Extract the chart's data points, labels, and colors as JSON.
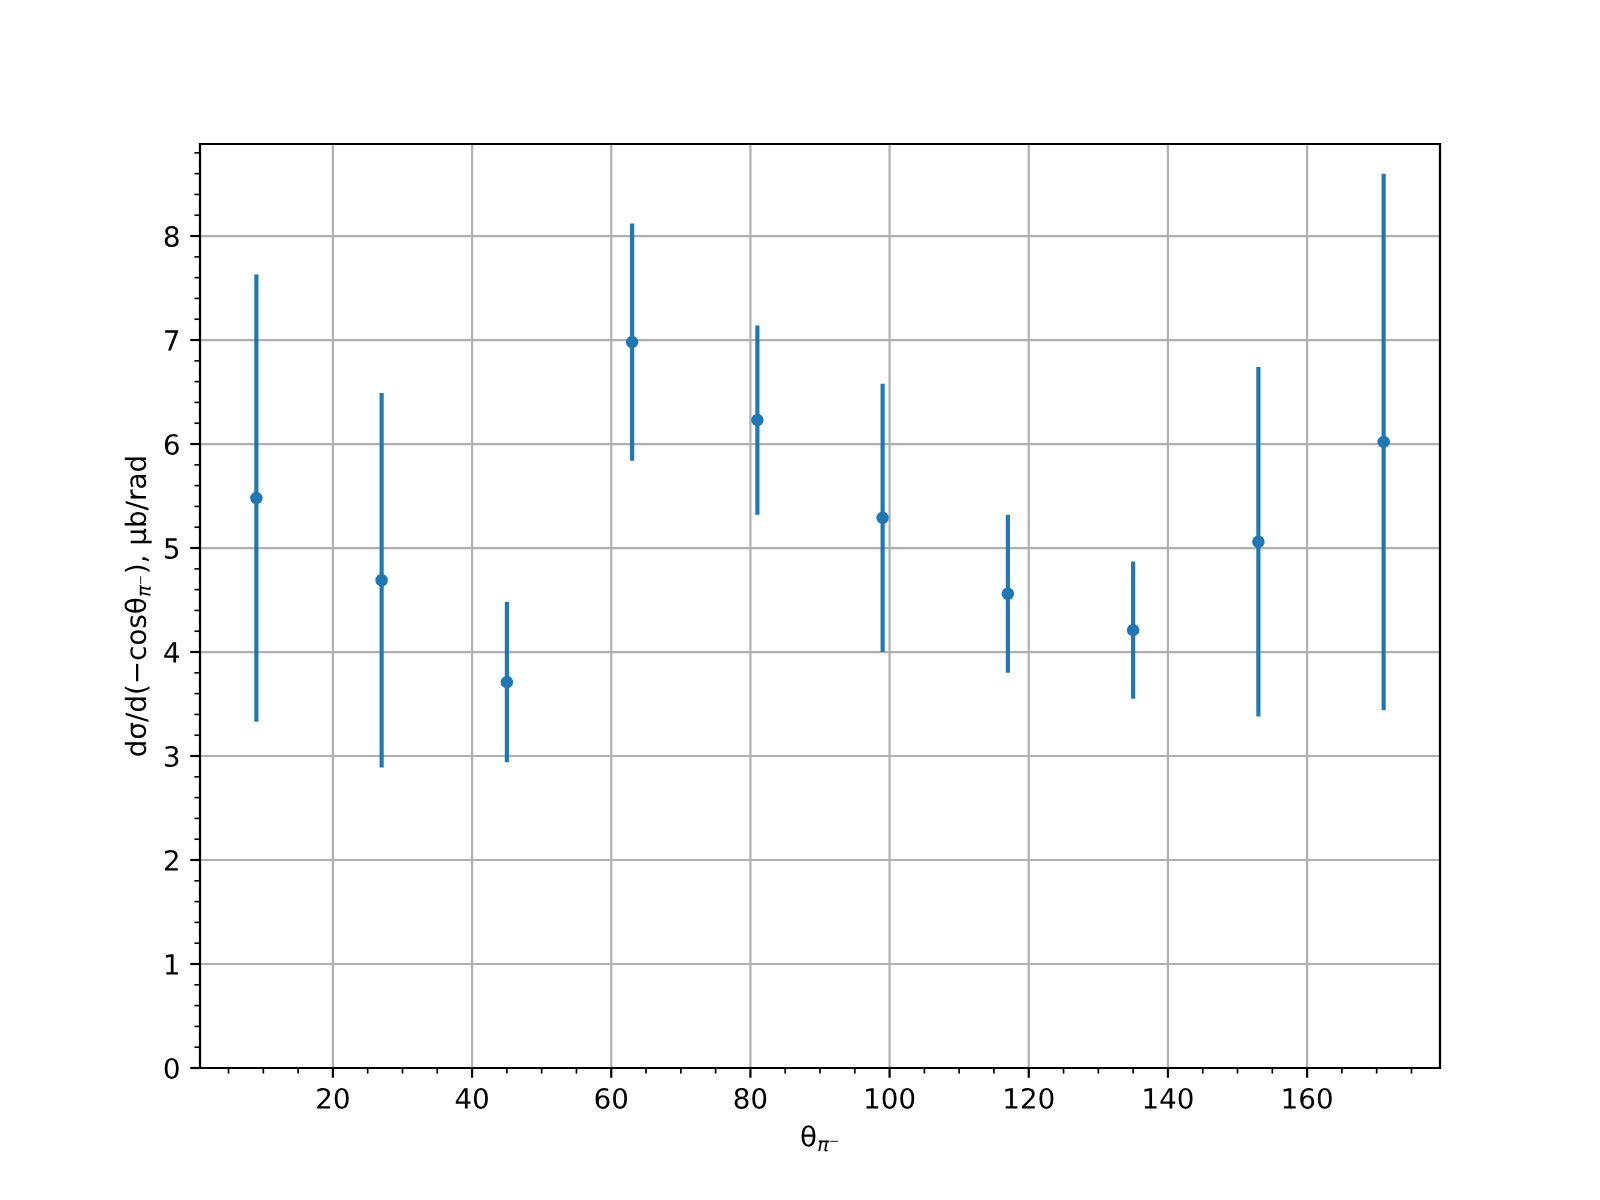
{
  "chart_data": {
    "type": "scatter",
    "xlabel": "θ$_{π⁻}$",
    "ylabel": "dσ/d(−cosθ$_{π⁻}$), μb/rad",
    "x": [
      9,
      27,
      45,
      63,
      81,
      99,
      117,
      135,
      153,
      171
    ],
    "series": [
      {
        "color": "#1f77b4",
        "values": [
          5.48,
          4.69,
          3.71,
          6.98,
          6.23,
          5.29,
          4.56,
          4.21,
          5.06,
          6.02
        ],
        "errors": [
          2.15,
          1.8,
          0.77,
          1.14,
          0.91,
          1.29,
          0.76,
          0.66,
          1.68,
          2.58
        ]
      }
    ],
    "xlim": [
      0.9,
      179.1
    ],
    "xticks": [
      20,
      40,
      60,
      80,
      100,
      120,
      140,
      160
    ],
    "ylim": [
      0,
      8.885
    ],
    "yticks": [
      0,
      1,
      2,
      3,
      4,
      5,
      6,
      7,
      8
    ],
    "grid": true,
    "marker": "circle"
  }
}
